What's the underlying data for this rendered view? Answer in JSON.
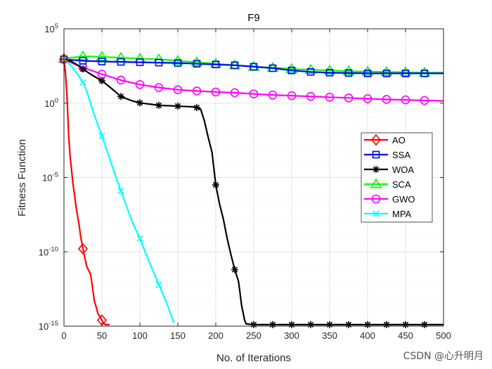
{
  "watermark": "CSDN @心升明月",
  "chart_data": {
    "type": "line",
    "title": "F9",
    "xlabel": "No. of Iterations",
    "ylabel": "Fitness Function",
    "xlim": [
      0,
      500
    ],
    "ylim_log10": [
      -15,
      5
    ],
    "y_scale": "log",
    "grid": true,
    "legend_position": "right",
    "x_ticks": [
      0,
      50,
      100,
      150,
      200,
      250,
      300,
      350,
      400,
      450,
      500
    ],
    "y_ticks": [
      {
        "exp": 5,
        "base": "10",
        "sup": "5"
      },
      {
        "exp": 0,
        "base": "10",
        "sup": "0"
      },
      {
        "exp": -5,
        "base": "10",
        "sup": "-5"
      },
      {
        "exp": -10,
        "base": "10",
        "sup": "-10"
      },
      {
        "exp": -15,
        "base": "10",
        "sup": "-15"
      }
    ],
    "series": [
      {
        "name": "AO",
        "color": "#FF0000",
        "marker": "diamond",
        "points": [
          [
            0,
            2.95
          ],
          [
            2,
            2.0
          ],
          [
            4,
            0.5
          ],
          [
            6,
            -2.0
          ],
          [
            8,
            -3.5
          ],
          [
            10,
            -4.5
          ],
          [
            12,
            -5.5
          ],
          [
            14,
            -6.2
          ],
          [
            16,
            -7.0
          ],
          [
            18,
            -7.6
          ],
          [
            20,
            -8.2
          ],
          [
            22,
            -9.0
          ],
          [
            24,
            -9.5
          ],
          [
            25,
            -9.8
          ],
          [
            28,
            -10.5
          ],
          [
            30,
            -11.0
          ],
          [
            32,
            -11.2
          ],
          [
            35,
            -11.5
          ],
          [
            38,
            -12.5
          ],
          [
            40,
            -13.3
          ],
          [
            43,
            -13.8
          ],
          [
            45,
            -14.2
          ],
          [
            48,
            -14.4
          ],
          [
            50,
            -14.6
          ],
          [
            52,
            -14.8
          ],
          [
            55,
            -14.9
          ],
          [
            60,
            -14.9
          ]
        ],
        "marker_x": [
          0,
          25,
          50
        ]
      },
      {
        "name": "SSA",
        "color": "#0000FF",
        "marker": "square",
        "points": [
          [
            0,
            2.95
          ],
          [
            25,
            2.85
          ],
          [
            50,
            2.8
          ],
          [
            100,
            2.75
          ],
          [
            150,
            2.7
          ],
          [
            175,
            2.65
          ],
          [
            200,
            2.6
          ],
          [
            225,
            2.55
          ],
          [
            250,
            2.45
          ],
          [
            275,
            2.35
          ],
          [
            300,
            2.2
          ],
          [
            325,
            2.1
          ],
          [
            350,
            2.05
          ],
          [
            400,
            2.0
          ],
          [
            450,
            2.0
          ],
          [
            500,
            2.0
          ]
        ],
        "marker_x": [
          0,
          25,
          50,
          75,
          100,
          125,
          150,
          175,
          200,
          225,
          250,
          275,
          300,
          325,
          350,
          375,
          400,
          425,
          450,
          475
        ]
      },
      {
        "name": "WOA",
        "color": "#000000",
        "marker": "asterisk",
        "points": [
          [
            0,
            2.95
          ],
          [
            10,
            2.8
          ],
          [
            20,
            2.5
          ],
          [
            25,
            2.3
          ],
          [
            35,
            1.95
          ],
          [
            50,
            1.5
          ],
          [
            60,
            1.1
          ],
          [
            75,
            0.45
          ],
          [
            90,
            0.15
          ],
          [
            100,
            0.02
          ],
          [
            125,
            -0.15
          ],
          [
            150,
            -0.2
          ],
          [
            170,
            -0.25
          ],
          [
            175,
            -0.3
          ],
          [
            180,
            -0.4
          ],
          [
            185,
            -1.2
          ],
          [
            190,
            -2.3
          ],
          [
            195,
            -3.3
          ],
          [
            200,
            -5.5
          ],
          [
            205,
            -6.8
          ],
          [
            210,
            -7.8
          ],
          [
            215,
            -9.1
          ],
          [
            220,
            -10.2
          ],
          [
            225,
            -11.2
          ],
          [
            230,
            -12.0
          ],
          [
            232,
            -12.8
          ],
          [
            234,
            -13.6
          ],
          [
            236,
            -14.1
          ],
          [
            238,
            -14.6
          ],
          [
            240,
            -14.85
          ],
          [
            250,
            -14.9
          ],
          [
            500,
            -14.9
          ]
        ],
        "marker_x": [
          0,
          25,
          50,
          75,
          100,
          125,
          150,
          175,
          200,
          225,
          250,
          275,
          300,
          325,
          350,
          375,
          400,
          425,
          450,
          475
        ]
      },
      {
        "name": "SCA",
        "color": "#00FF00",
        "marker": "triangle",
        "points": [
          [
            0,
            3.0
          ],
          [
            25,
            3.15
          ],
          [
            50,
            3.12
          ],
          [
            75,
            3.05
          ],
          [
            100,
            3.0
          ],
          [
            125,
            2.95
          ],
          [
            150,
            2.85
          ],
          [
            175,
            2.75
          ],
          [
            200,
            2.65
          ],
          [
            225,
            2.55
          ],
          [
            250,
            2.45
          ],
          [
            275,
            2.38
          ],
          [
            300,
            2.3
          ],
          [
            325,
            2.25
          ],
          [
            350,
            2.2
          ],
          [
            375,
            2.15
          ],
          [
            400,
            2.12
          ],
          [
            425,
            2.1
          ],
          [
            450,
            2.08
          ],
          [
            475,
            2.05
          ],
          [
            500,
            2.05
          ]
        ],
        "marker_x": [
          0,
          25,
          50,
          75,
          100,
          125,
          150,
          175,
          200,
          225,
          250,
          275,
          300,
          325,
          350,
          375,
          400,
          425,
          450,
          475
        ]
      },
      {
        "name": "GWO",
        "color": "#FF00FF",
        "marker": "circle",
        "points": [
          [
            0,
            2.95
          ],
          [
            15,
            2.6
          ],
          [
            25,
            2.4
          ],
          [
            50,
            1.95
          ],
          [
            75,
            1.55
          ],
          [
            100,
            1.25
          ],
          [
            125,
            1.05
          ],
          [
            150,
            0.9
          ],
          [
            175,
            0.82
          ],
          [
            200,
            0.75
          ],
          [
            225,
            0.7
          ],
          [
            250,
            0.62
          ],
          [
            275,
            0.55
          ],
          [
            300,
            0.5
          ],
          [
            325,
            0.45
          ],
          [
            350,
            0.4
          ],
          [
            375,
            0.35
          ],
          [
            400,
            0.3
          ],
          [
            425,
            0.25
          ],
          [
            450,
            0.22
          ],
          [
            475,
            0.18
          ],
          [
            500,
            0.15
          ]
        ],
        "marker_x": [
          0,
          25,
          50,
          75,
          100,
          125,
          150,
          175,
          200,
          225,
          250,
          275,
          300,
          325,
          350,
          375,
          400,
          425,
          450,
          475
        ]
      },
      {
        "name": "MPA",
        "color": "#00FFFF",
        "marker": "x",
        "points": [
          [
            0,
            2.95
          ],
          [
            10,
            2.5
          ],
          [
            20,
            1.8
          ],
          [
            25,
            1.4
          ],
          [
            30,
            0.8
          ],
          [
            40,
            -0.8
          ],
          [
            50,
            -2.2
          ],
          [
            60,
            -3.7
          ],
          [
            70,
            -5.2
          ],
          [
            75,
            -5.9
          ],
          [
            80,
            -6.6
          ],
          [
            90,
            -8.0
          ],
          [
            100,
            -9.1
          ],
          [
            110,
            -10.4
          ],
          [
            120,
            -11.6
          ],
          [
            125,
            -12.2
          ],
          [
            130,
            -12.8
          ],
          [
            135,
            -13.4
          ],
          [
            140,
            -14.1
          ],
          [
            145,
            -14.8
          ]
        ],
        "marker_x": [
          0,
          25,
          50,
          75,
          100,
          125
        ]
      }
    ]
  }
}
